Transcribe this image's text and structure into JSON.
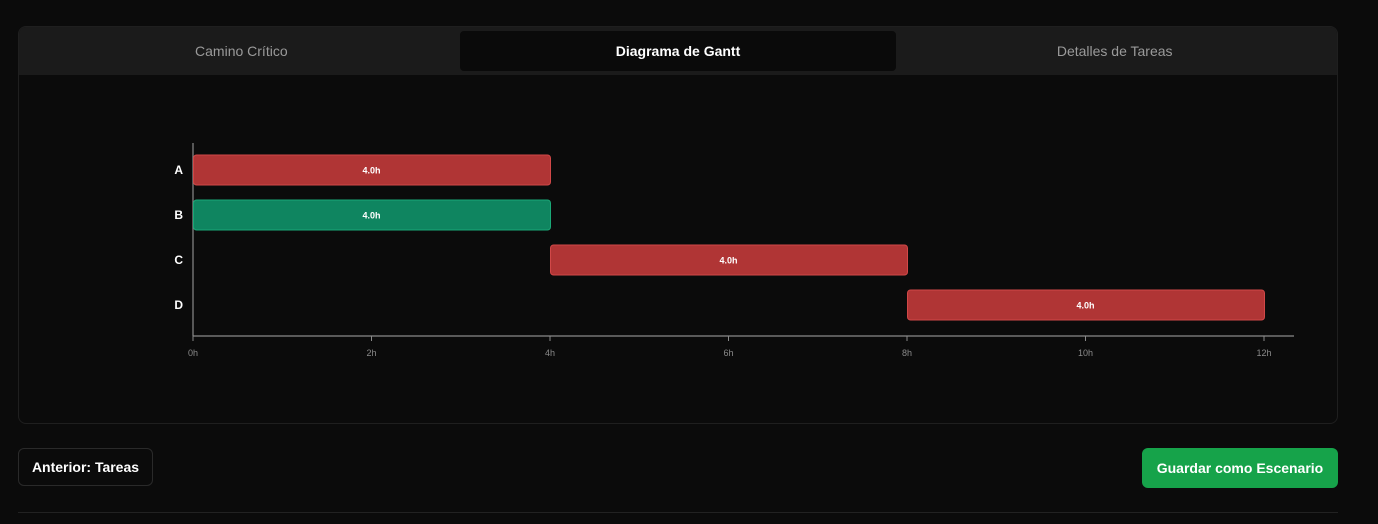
{
  "tabs": [
    {
      "label": "Camino Crítico",
      "active": false
    },
    {
      "label": "Diagrama de Gantt",
      "active": true
    },
    {
      "label": "Detalles de Tareas",
      "active": false
    }
  ],
  "chart_data": {
    "type": "gantt",
    "title": "",
    "xlabel": "",
    "ylabel": "",
    "x_unit": "h",
    "xlim": [
      0,
      12
    ],
    "x_ticks": [
      "0h",
      "2h",
      "4h",
      "6h",
      "8h",
      "10h",
      "12h"
    ],
    "tasks": [
      {
        "name": "A",
        "start": 0,
        "duration": 4,
        "label": "4.0h",
        "critical": true
      },
      {
        "name": "B",
        "start": 0,
        "duration": 4,
        "label": "4.0h",
        "critical": false
      },
      {
        "name": "C",
        "start": 4,
        "duration": 4,
        "label": "4.0h",
        "critical": true
      },
      {
        "name": "D",
        "start": 8,
        "duration": 4,
        "label": "4.0h",
        "critical": true
      }
    ],
    "colors": {
      "critical": "#b03535",
      "normal": "#0f8560",
      "axis": "#8a8a8a"
    }
  },
  "buttons": {
    "prev_label": "Anterior: Tareas",
    "save_label": "Guardar como Escenario"
  }
}
